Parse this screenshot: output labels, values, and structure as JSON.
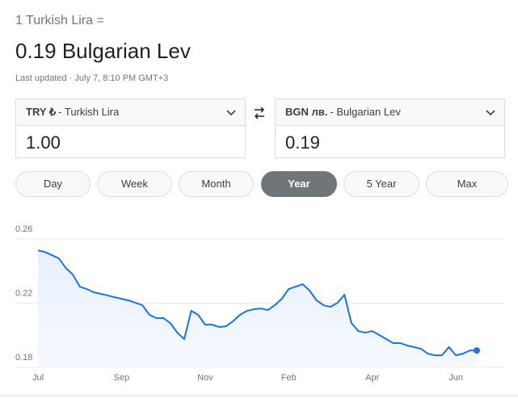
{
  "header": {
    "prefix": "1 Turkish Lira =",
    "result": "0.19 Bulgarian Lev",
    "updated": "Last updated · July 7, 8:10 PM GMT+3"
  },
  "converter": {
    "from": {
      "code": "TRY ₺",
      "name": "- Turkish Lira",
      "amount": "1.00"
    },
    "to": {
      "code": "BGN лв.",
      "name": "- Bulgarian Lev",
      "amount": "0.19"
    }
  },
  "ranges": [
    "Day",
    "Week",
    "Month",
    "Year",
    "5 Year",
    "Max"
  ],
  "selected_range": "Year",
  "chart_data": {
    "type": "line",
    "categories": [
      "Jul",
      null,
      null,
      null,
      null,
      null,
      null,
      null,
      null,
      null,
      null,
      null,
      "Sep",
      null,
      null,
      null,
      null,
      null,
      null,
      null,
      null,
      null,
      null,
      null,
      "Nov",
      null,
      null,
      null,
      null,
      null,
      null,
      null,
      null,
      null,
      null,
      null,
      "Feb",
      null,
      null,
      null,
      null,
      null,
      null,
      null,
      null,
      null,
      null,
      null,
      "Apr",
      null,
      null,
      null,
      null,
      null,
      null,
      null,
      null,
      null,
      null,
      null,
      "Jun",
      null,
      null,
      null
    ],
    "series": [
      {
        "color": "#1a73e8",
        "values": [
          0.2529,
          0.2519,
          0.2499,
          0.2479,
          0.2419,
          0.2378,
          0.2303,
          0.2288,
          0.2268,
          0.2258,
          0.2248,
          0.2237,
          0.2227,
          0.2217,
          0.2202,
          0.2187,
          0.2127,
          0.2107,
          0.2107,
          0.2076,
          0.2016,
          0.1976,
          0.2152,
          0.2127,
          0.2066,
          0.2066,
          0.2051,
          0.2056,
          0.2087,
          0.2127,
          0.2152,
          0.2162,
          0.2167,
          0.2157,
          0.2187,
          0.2227,
          0.2288,
          0.2303,
          0.2318,
          0.2278,
          0.2217,
          0.2187,
          0.2177,
          0.2202,
          0.2253,
          0.2076,
          0.2026,
          0.2016,
          0.2026,
          0.2001,
          0.1976,
          0.1951,
          0.1951,
          0.1936,
          0.1926,
          0.1915,
          0.1885,
          0.1875,
          0.1875,
          0.1926,
          0.1875,
          0.1885,
          0.1905,
          0.1905
        ]
      }
    ],
    "ylim": [
      0.18,
      0.26
    ],
    "yticks": [
      0.18,
      0.22,
      0.26
    ],
    "grid": true
  }
}
